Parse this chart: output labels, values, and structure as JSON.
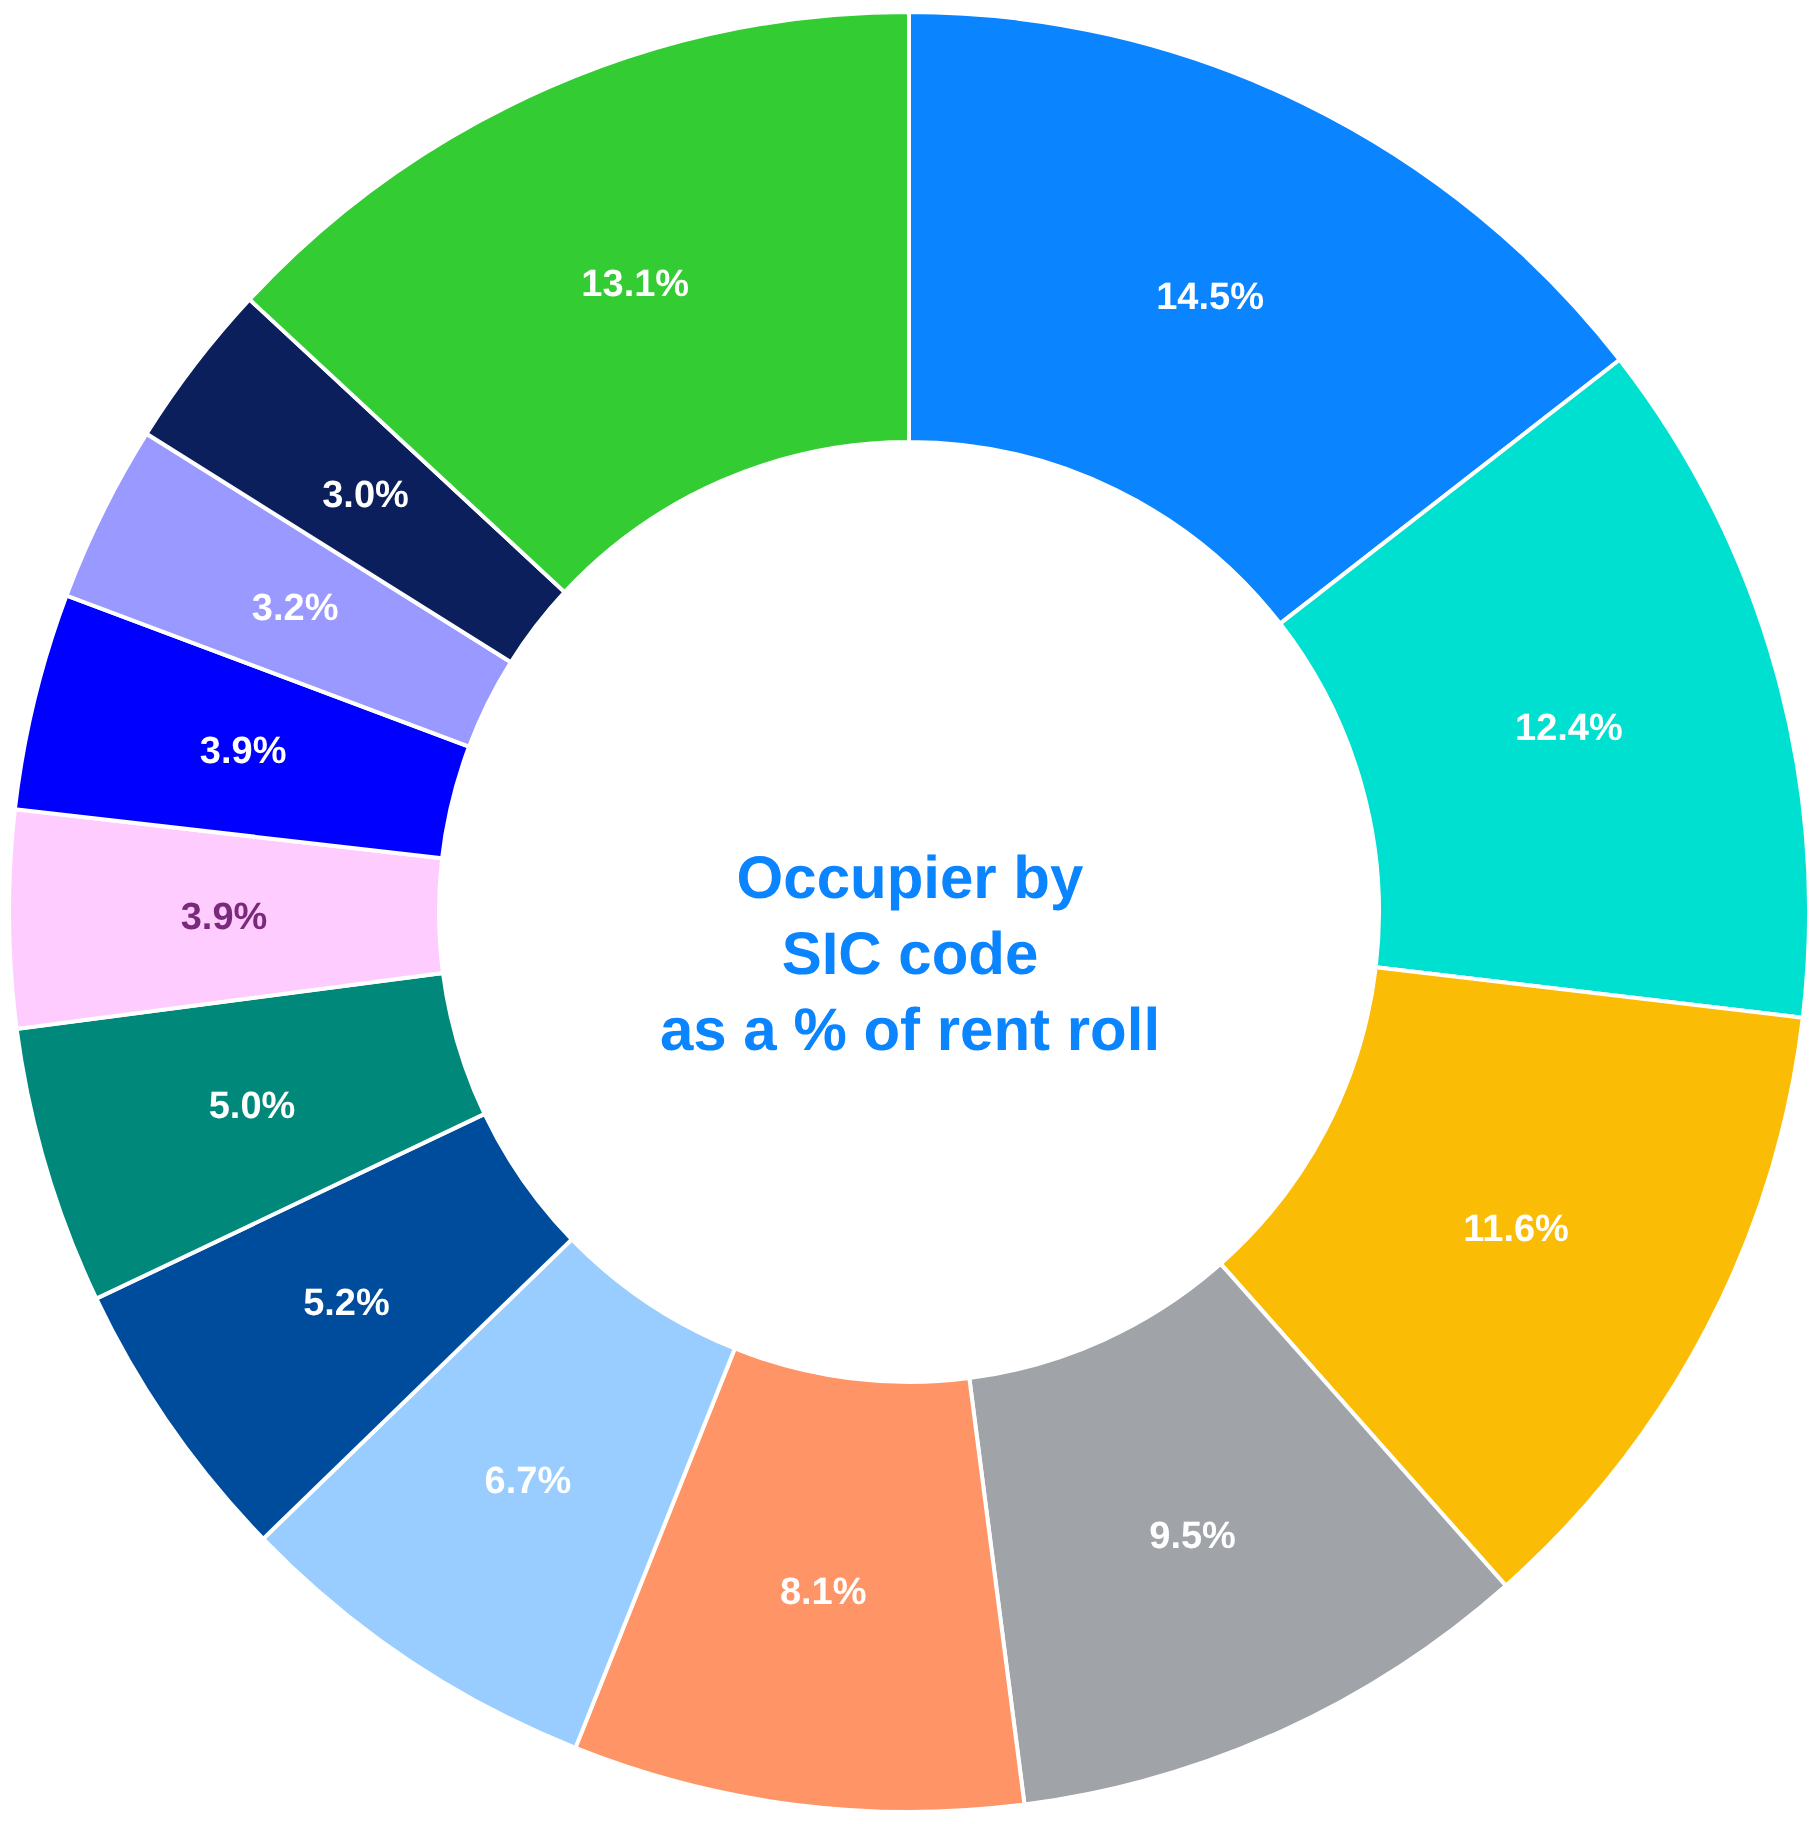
{
  "chart_data": {
    "type": "donut",
    "title": "Occupier by\nSIC code\nas a % of rent roll",
    "categories": [
      null,
      null,
      null,
      null,
      null,
      null,
      null,
      null,
      null,
      null,
      null,
      null,
      null
    ],
    "values": [
      14.5,
      12.4,
      11.6,
      9.5,
      8.1,
      6.7,
      5.2,
      5.0,
      3.9,
      3.9,
      3.2,
      3.0,
      13.1
    ],
    "colors": [
      "#0a84ff",
      "#00e0d0",
      "#fbbc05",
      "#a0a4a8",
      "#ff9466",
      "#99ccff",
      "#004c9c",
      "#00897b",
      "#ffccff",
      "#0000ff",
      "#9999ff",
      "#0a1f5c",
      "#33cc33"
    ],
    "value_labels": [
      "14.5%",
      "12.4%",
      "11.6%",
      "9.5%",
      "8.1%",
      "6.7%",
      "5.2%",
      "5.0%",
      "3.9%",
      "3.9%",
      "3.2%",
      "3.0%",
      "13.1%"
    ],
    "legend": false
  }
}
